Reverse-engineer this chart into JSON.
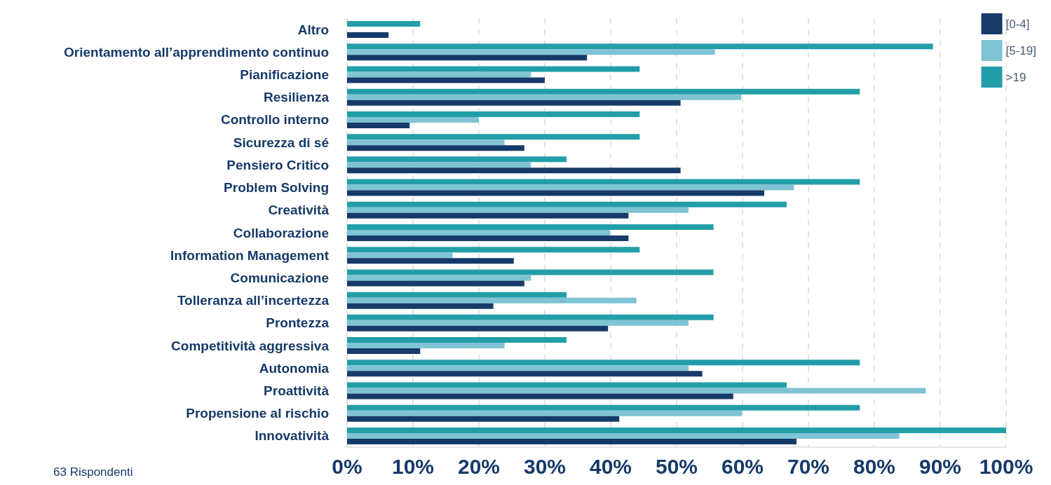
{
  "chart_data": {
    "type": "bar",
    "orientation": "horizontal",
    "categories": [
      "Altro",
      "Orientamento all’apprendimento continuo",
      "Pianificazione",
      "Resilienza",
      "Controllo interno",
      "Sicurezza di sé",
      "Pensiero Critico",
      "Problem Solving",
      "Creatività",
      "Collaborazione",
      "Information Management",
      "Comunicazione",
      "Tolleranza all’incertezza",
      "Prontezza",
      "Competitività aggressiva",
      "Autonomia",
      "Proattività",
      "Propensione al rischio",
      "Innovatività"
    ],
    "series": [
      {
        "name": "[0-4]",
        "color": "#163a69",
        "values": [
          6.3,
          36.4,
          30,
          50.6,
          9.5,
          26.9,
          50.6,
          63.3,
          42.7,
          42.7,
          25.3,
          26.9,
          22.2,
          39.6,
          11.1,
          53.9,
          58.6,
          41.3,
          68.2
        ]
      },
      {
        "name": "[5-19]",
        "color": "#7fc3d4",
        "values": [
          0,
          55.8,
          27.9,
          59.8,
          20,
          23.9,
          27.9,
          67.8,
          51.8,
          39.9,
          16,
          27.9,
          43.9,
          51.8,
          23.9,
          51.8,
          87.8,
          59.9,
          83.8
        ]
      },
      {
        "name": ">19",
        "color": "#229ea9",
        "values": [
          11.1,
          88.9,
          44.4,
          77.8,
          44.4,
          44.4,
          33.3,
          77.8,
          66.7,
          55.6,
          44.4,
          55.6,
          33.3,
          55.6,
          33.3,
          77.8,
          66.7,
          77.8,
          100
        ]
      }
    ],
    "xlim": [
      0,
      100
    ],
    "xticks": [
      {
        "value": 0,
        "label": "0%"
      },
      {
        "value": 10,
        "label": "10%"
      },
      {
        "value": 20,
        "label": "20%"
      },
      {
        "value": 30,
        "label": "30%"
      },
      {
        "value": 40,
        "label": "40%"
      },
      {
        "value": 50,
        "label": "50%"
      },
      {
        "value": 60,
        "label": "60%"
      },
      {
        "value": 70,
        "label": "70%"
      },
      {
        "value": 80,
        "label": "80%"
      },
      {
        "value": 90,
        "label": "90%"
      },
      {
        "value": 100,
        "label": "100%"
      }
    ],
    "grid": "x",
    "legend": "top right",
    "annotations": [
      "63 Rispondenti"
    ]
  }
}
